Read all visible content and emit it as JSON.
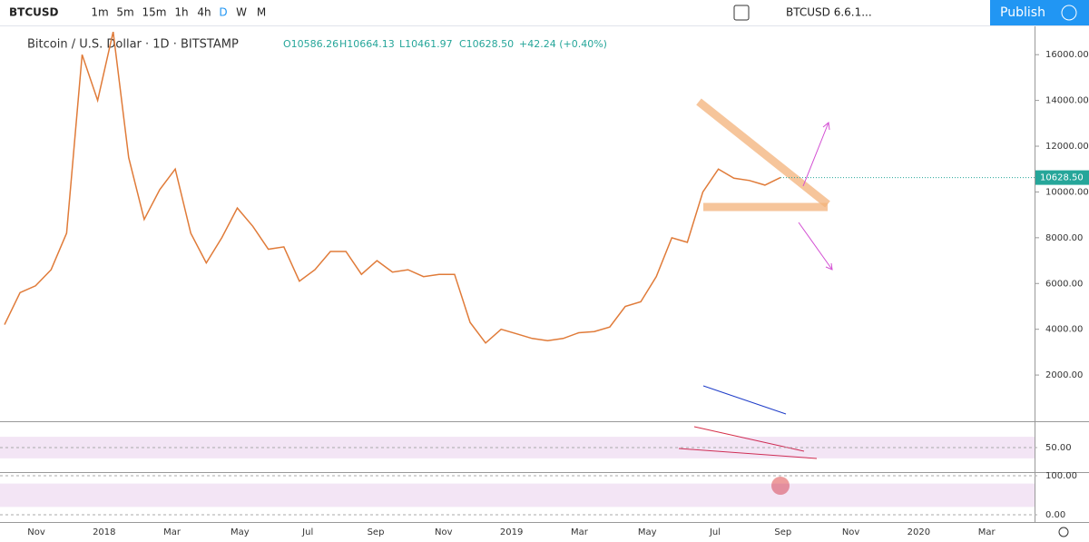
{
  "toolbar": {
    "symbol": "BTCUSD",
    "intervals": [
      "1m",
      "5m",
      "15m",
      "1h",
      "4h",
      "D",
      "W",
      "M"
    ],
    "layout_name": "BTCUSD 6.6.1...",
    "publish": "Publish"
  },
  "legend": {
    "title": "Bitcoin / U.S. Dollar · 1D · BITSTAMP",
    "open": "O10586.26",
    "high": "H10664.13",
    "low": "L10461.97",
    "close": "C10628.50",
    "change": "+42.24 (+0.40%)"
  },
  "chart_data": {
    "type": "line",
    "color": "#e07b39",
    "values": [
      4200,
      5600,
      5900,
      6600,
      8200,
      16000,
      14000,
      17000,
      11500,
      8800,
      10100,
      11000,
      8200,
      6900,
      8000,
      9300,
      8500,
      7500,
      7600,
      6100,
      6600,
      7400,
      7400,
      6400,
      7000,
      6500,
      6600,
      6300,
      6400,
      6400,
      4300,
      3400,
      4000,
      3800,
      3600,
      3500,
      3600,
      3850,
      3900,
      4100,
      5000,
      5200,
      6300,
      8000,
      7800,
      10000,
      11000,
      10600,
      10500,
      10300,
      10628.5
    ],
    "last_label": "10628.50",
    "ylim": [
      0,
      17000
    ],
    "yticks": [
      {
        "value": 16000,
        "label": "16000.00"
      },
      {
        "value": 14000,
        "label": "14000.00"
      },
      {
        "value": 12000,
        "label": "12000.00"
      },
      {
        "value": 10000,
        "label": "10000.00"
      },
      {
        "value": 8000,
        "label": "8000.00"
      },
      {
        "value": 6000,
        "label": "6000.00"
      },
      {
        "value": 4000,
        "label": "4000.00"
      },
      {
        "value": 2000,
        "label": "2000.00"
      }
    ],
    "x_tick_labels": [
      "Nov",
      "2018",
      "Mar",
      "May",
      "Jul",
      "Sep",
      "Nov",
      "2019",
      "Mar",
      "May",
      "Jul",
      "Sep",
      "Nov",
      "2020",
      "Mar"
    ]
  },
  "panes": {
    "rsi": {
      "ylim": [
        20,
        80
      ],
      "yticks": [
        {
          "value": 50,
          "label": "50.00"
        }
      ]
    },
    "stochastic": {
      "ylim": [
        0,
        100
      ],
      "yticks": [
        {
          "value": 100,
          "label": "100.00"
        },
        {
          "value": 0,
          "label": "0.00"
        }
      ]
    }
  }
}
